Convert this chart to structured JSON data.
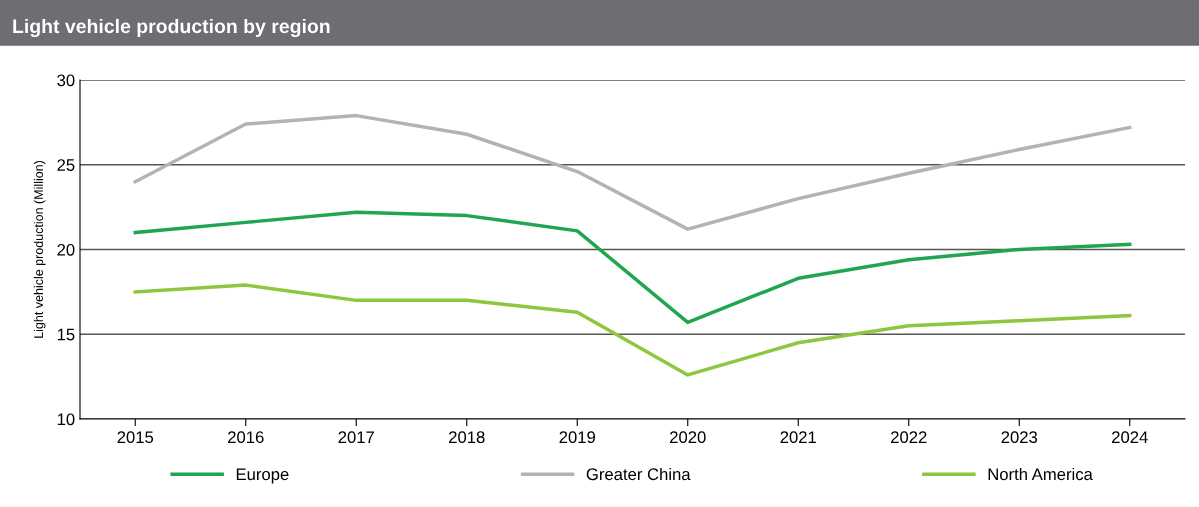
{
  "chart_data": {
    "type": "line",
    "title": "Light vehicle production by region",
    "ylabel": "Light vehicle production (Million)",
    "categories": [
      "2015",
      "2016",
      "2017",
      "2018",
      "2019",
      "2020",
      "2021",
      "2022",
      "2023",
      "2024"
    ],
    "series": [
      {
        "name": "Europe",
        "color": "#1fa64f",
        "values": [
          21.0,
          21.6,
          22.2,
          22.0,
          21.1,
          15.7,
          18.3,
          19.4,
          20.0,
          20.3
        ]
      },
      {
        "name": "Greater China",
        "color": "#b3b3b3",
        "values": [
          24.0,
          27.4,
          27.9,
          26.8,
          24.6,
          21.2,
          23.0,
          24.5,
          25.9,
          27.2
        ]
      },
      {
        "name": "North America",
        "color": "#8dc63f",
        "values": [
          17.5,
          17.9,
          17.0,
          17.0,
          16.3,
          12.6,
          14.5,
          15.5,
          15.8,
          16.1
        ]
      }
    ],
    "ylim": [
      10,
      30
    ],
    "yticks": [
      10,
      15,
      20,
      25,
      30
    ],
    "grid": "y",
    "legend": "bottom",
    "marker": "none",
    "line_style": "solid"
  }
}
